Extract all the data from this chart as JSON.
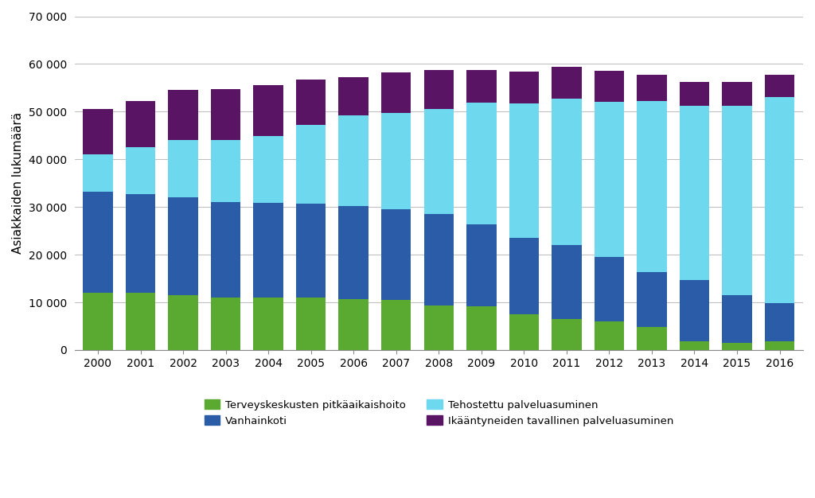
{
  "years": [
    2000,
    2001,
    2002,
    2003,
    2004,
    2005,
    2006,
    2007,
    2008,
    2009,
    2010,
    2011,
    2012,
    2013,
    2014,
    2015,
    2016
  ],
  "terveyskeskus": [
    12000,
    12000,
    11500,
    11000,
    11000,
    11000,
    10700,
    10500,
    9300,
    9200,
    7500,
    6500,
    6000,
    4800,
    1900,
    1500,
    1800
  ],
  "vanhainkoti": [
    21200,
    20700,
    20500,
    20000,
    19900,
    19700,
    19500,
    19000,
    19200,
    17200,
    16000,
    15500,
    13500,
    11500,
    12800,
    10000,
    8000
  ],
  "tehostettu": [
    7800,
    9800,
    12000,
    13000,
    14000,
    16500,
    19000,
    20300,
    22000,
    25500,
    28200,
    30700,
    32500,
    36000,
    36500,
    39800,
    43200
  ],
  "tavallinen": [
    9600,
    9700,
    10500,
    10700,
    10700,
    9600,
    8000,
    8500,
    8300,
    6800,
    6700,
    6700,
    6500,
    5500,
    5100,
    5000,
    4800
  ],
  "colors": {
    "terveyskeskus": "#5aaa32",
    "vanhainkoti": "#2b5ca8",
    "tehostettu": "#6ed8ef",
    "tavallinen": "#5a1464"
  },
  "ylabel": "Asiakkaiden lukumäärä",
  "ylim": [
    0,
    70000
  ],
  "yticks": [
    0,
    10000,
    20000,
    30000,
    40000,
    50000,
    60000,
    70000
  ],
  "ytick_labels": [
    "0",
    "10 000",
    "20 000",
    "30 000",
    "40 000",
    "50 000",
    "60 000",
    "70 000"
  ],
  "legend_labels": [
    "Terveyskeskusten pitkäaikaishoito",
    "Vanhainkoti",
    "Tehostettu palveluasuminen",
    "Ikääntyneiden tavallinen palveluasuminen"
  ],
  "background_color": "#ffffff",
  "grid_color": "#c0c0c0",
  "bar_width": 0.7,
  "figsize": [
    10.24,
    6.26
  ],
  "dpi": 100
}
